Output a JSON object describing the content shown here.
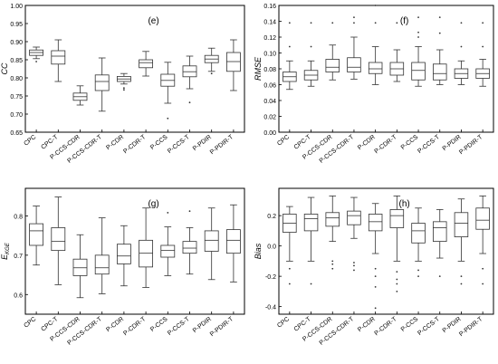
{
  "figure": {
    "categories": [
      "CPC",
      "CPC-T",
      "P-CCS-CDR",
      "P-CCS-CDR-T",
      "P-CDR",
      "P-CDR-T",
      "P-CCS",
      "P-CCS-T",
      "P-PDIR",
      "P-PDIR-T"
    ]
  },
  "chart_data": [
    {
      "type": "box",
      "panel": "(e)",
      "ylabel": "CC",
      "ylim": [
        0.65,
        1.0
      ],
      "yticks": [
        "0.65",
        "0.70",
        "0.75",
        "0.80",
        "0.85",
        "0.90",
        "0.95",
        "1.00"
      ],
      "categories": [
        "CPC",
        "CPC-T",
        "P-CCS-CDR",
        "P-CCS-CDR-T",
        "P-CDR",
        "P-CDR-T",
        "P-CCS",
        "P-CCS-T",
        "P-PDIR",
        "P-PDIR-T"
      ],
      "boxes": [
        {
          "min": 0.853,
          "q1": 0.862,
          "median": 0.87,
          "q3": 0.877,
          "max": 0.885,
          "outliers": [
            0.845
          ]
        },
        {
          "min": 0.79,
          "q1": 0.838,
          "median": 0.86,
          "q3": 0.875,
          "max": 0.905,
          "outliers": []
        },
        {
          "min": 0.725,
          "q1": 0.738,
          "median": 0.748,
          "q3": 0.758,
          "max": 0.778,
          "outliers": []
        },
        {
          "min": 0.708,
          "q1": 0.765,
          "median": 0.79,
          "q3": 0.808,
          "max": 0.855,
          "outliers": []
        },
        {
          "min": 0.783,
          "q1": 0.79,
          "median": 0.797,
          "q3": 0.804,
          "max": 0.812,
          "outliers": [
            0.772,
            0.767
          ]
        },
        {
          "min": 0.805,
          "q1": 0.828,
          "median": 0.842,
          "q3": 0.85,
          "max": 0.873,
          "outliers": []
        },
        {
          "min": 0.73,
          "q1": 0.777,
          "median": 0.793,
          "q3": 0.81,
          "max": 0.843,
          "outliers": [
            0.688
          ]
        },
        {
          "min": 0.77,
          "q1": 0.803,
          "median": 0.817,
          "q3": 0.833,
          "max": 0.86,
          "outliers": [
            0.732
          ]
        },
        {
          "min": 0.818,
          "q1": 0.842,
          "median": 0.852,
          "q3": 0.862,
          "max": 0.882,
          "outliers": [
            0.812
          ]
        },
        {
          "min": 0.765,
          "q1": 0.818,
          "median": 0.845,
          "q3": 0.87,
          "max": 0.905,
          "outliers": []
        }
      ]
    },
    {
      "type": "box",
      "panel": "(f)",
      "ylabel": "RMSE",
      "ylim": [
        0.0,
        0.16
      ],
      "yticks": [
        "0.00",
        "0.02",
        "0.04",
        "0.06",
        "0.08",
        "0.10",
        "0.12",
        "0.14",
        "0.16"
      ],
      "categories": [
        "CPC",
        "CPC-T",
        "P-CCS-CDR",
        "P-CCS-CDR-T",
        "P-CDR",
        "P-CDR-T",
        "P-CCS",
        "P-CCS-T",
        "P-PDIR",
        "P-PDIR-T"
      ],
      "boxes": [
        {
          "min": 0.054,
          "q1": 0.064,
          "median": 0.07,
          "q3": 0.076,
          "max": 0.09,
          "outliers": [
            0.108,
            0.138
          ]
        },
        {
          "min": 0.058,
          "q1": 0.066,
          "median": 0.072,
          "q3": 0.078,
          "max": 0.09,
          "outliers": [
            0.108,
            0.138
          ]
        },
        {
          "min": 0.066,
          "q1": 0.076,
          "median": 0.082,
          "q3": 0.092,
          "max": 0.11,
          "outliers": [
            0.138
          ]
        },
        {
          "min": 0.067,
          "q1": 0.076,
          "median": 0.082,
          "q3": 0.094,
          "max": 0.12,
          "outliers": [
            0.145,
            0.138
          ]
        },
        {
          "min": 0.06,
          "q1": 0.074,
          "median": 0.08,
          "q3": 0.088,
          "max": 0.108,
          "outliers": [
            0.16,
            0.138
          ]
        },
        {
          "min": 0.064,
          "q1": 0.072,
          "median": 0.08,
          "q3": 0.088,
          "max": 0.104,
          "outliers": [
            0.138
          ]
        },
        {
          "min": 0.058,
          "q1": 0.066,
          "median": 0.078,
          "q3": 0.088,
          "max": 0.108,
          "outliers": [
            0.12,
            0.126,
            0.145
          ]
        },
        {
          "min": 0.06,
          "q1": 0.066,
          "median": 0.074,
          "q3": 0.086,
          "max": 0.104,
          "outliers": [
            0.125,
            0.145
          ]
        },
        {
          "min": 0.06,
          "q1": 0.068,
          "median": 0.074,
          "q3": 0.08,
          "max": 0.09,
          "outliers": [
            0.108,
            0.138
          ]
        },
        {
          "min": 0.058,
          "q1": 0.068,
          "median": 0.074,
          "q3": 0.08,
          "max": 0.092,
          "outliers": [
            0.108,
            0.138
          ]
        }
      ]
    },
    {
      "type": "box",
      "panel": "(g)",
      "ylabel": "E_KGE",
      "ylim": [
        0.55,
        0.87
      ],
      "yticks": [
        "0.6",
        "0.7",
        "0.8"
      ],
      "ytick_values": [
        0.6,
        0.7,
        0.8
      ],
      "categories": [
        "CPC",
        "CPC-T",
        "P-CCS-CDR",
        "P-CCS-CDR-T",
        "P-CDR",
        "P-CDR-T",
        "P-CCS",
        "P-CCS-T",
        "P-PDIR",
        "P-PDIR-T"
      ],
      "boxes": [
        {
          "min": 0.675,
          "q1": 0.725,
          "median": 0.762,
          "q3": 0.78,
          "max": 0.825,
          "outliers": []
        },
        {
          "min": 0.625,
          "q1": 0.712,
          "median": 0.735,
          "q3": 0.77,
          "max": 0.848,
          "outliers": []
        },
        {
          "min": 0.592,
          "q1": 0.648,
          "median": 0.668,
          "q3": 0.69,
          "max": 0.752,
          "outliers": []
        },
        {
          "min": 0.602,
          "q1": 0.652,
          "median": 0.668,
          "q3": 0.7,
          "max": 0.795,
          "outliers": []
        },
        {
          "min": 0.622,
          "q1": 0.678,
          "median": 0.698,
          "q3": 0.728,
          "max": 0.775,
          "outliers": []
        },
        {
          "min": 0.618,
          "q1": 0.67,
          "median": 0.705,
          "q3": 0.738,
          "max": 0.82,
          "outliers": []
        },
        {
          "min": 0.648,
          "q1": 0.695,
          "median": 0.712,
          "q3": 0.725,
          "max": 0.772,
          "outliers": [
            0.808
          ]
        },
        {
          "min": 0.652,
          "q1": 0.705,
          "median": 0.718,
          "q3": 0.735,
          "max": 0.77,
          "outliers": [
            0.812
          ]
        },
        {
          "min": 0.638,
          "q1": 0.71,
          "median": 0.738,
          "q3": 0.762,
          "max": 0.82,
          "outliers": []
        },
        {
          "min": 0.632,
          "q1": 0.705,
          "median": 0.738,
          "q3": 0.765,
          "max": 0.828,
          "outliers": []
        }
      ]
    },
    {
      "type": "box",
      "panel": "(h)",
      "ylabel": "Bias",
      "ylim": [
        -0.45,
        0.38
      ],
      "yticks": [
        "-0.4",
        "-0.2",
        "0.0",
        "0.2"
      ],
      "ytick_values": [
        -0.4,
        -0.2,
        0.0,
        0.2
      ],
      "categories": [
        "CPC",
        "CPC-T",
        "P-CCS-CDR",
        "P-CCS-CDR-T",
        "P-CDR",
        "P-CDR-T",
        "P-CCS",
        "P-CCS-T",
        "P-PDIR",
        "P-PDIR-T"
      ],
      "boxes": [
        {
          "min": -0.1,
          "q1": 0.09,
          "median": 0.15,
          "q3": 0.21,
          "max": 0.26,
          "outliers": [
            -0.15,
            -0.25
          ]
        },
        {
          "min": -0.1,
          "q1": 0.1,
          "median": 0.18,
          "q3": 0.21,
          "max": 0.32,
          "outliers": [
            -0.25
          ]
        },
        {
          "min": 0.03,
          "q1": 0.13,
          "median": 0.185,
          "q3": 0.22,
          "max": 0.33,
          "outliers": [
            -0.1,
            -0.12,
            -0.15
          ]
        },
        {
          "min": 0.05,
          "q1": 0.14,
          "median": 0.2,
          "q3": 0.23,
          "max": 0.32,
          "outliers": [
            -0.11,
            -0.13,
            -0.16
          ]
        },
        {
          "min": -0.05,
          "q1": 0.1,
          "median": 0.16,
          "q3": 0.21,
          "max": 0.28,
          "outliers": [
            -0.15,
            -0.2,
            -0.27,
            -0.41
          ]
        },
        {
          "min": -0.1,
          "q1": 0.12,
          "median": 0.2,
          "q3": 0.24,
          "max": 0.33,
          "outliers": [
            -0.17,
            -0.22,
            -0.25,
            -0.3
          ]
        },
        {
          "min": -0.1,
          "q1": 0.02,
          "median": 0.1,
          "q3": 0.15,
          "max": 0.25,
          "outliers": [
            -0.16,
            -0.2
          ]
        },
        {
          "min": -0.08,
          "q1": 0.03,
          "median": 0.12,
          "q3": 0.16,
          "max": 0.24,
          "outliers": [
            -0.2
          ]
        },
        {
          "min": -0.1,
          "q1": 0.06,
          "median": 0.15,
          "q3": 0.22,
          "max": 0.31,
          "outliers": [
            -0.2,
            -0.25
          ]
        },
        {
          "min": -0.05,
          "q1": 0.11,
          "median": 0.17,
          "q3": 0.25,
          "max": 0.33,
          "outliers": [
            -0.15,
            -0.25
          ]
        }
      ]
    }
  ]
}
